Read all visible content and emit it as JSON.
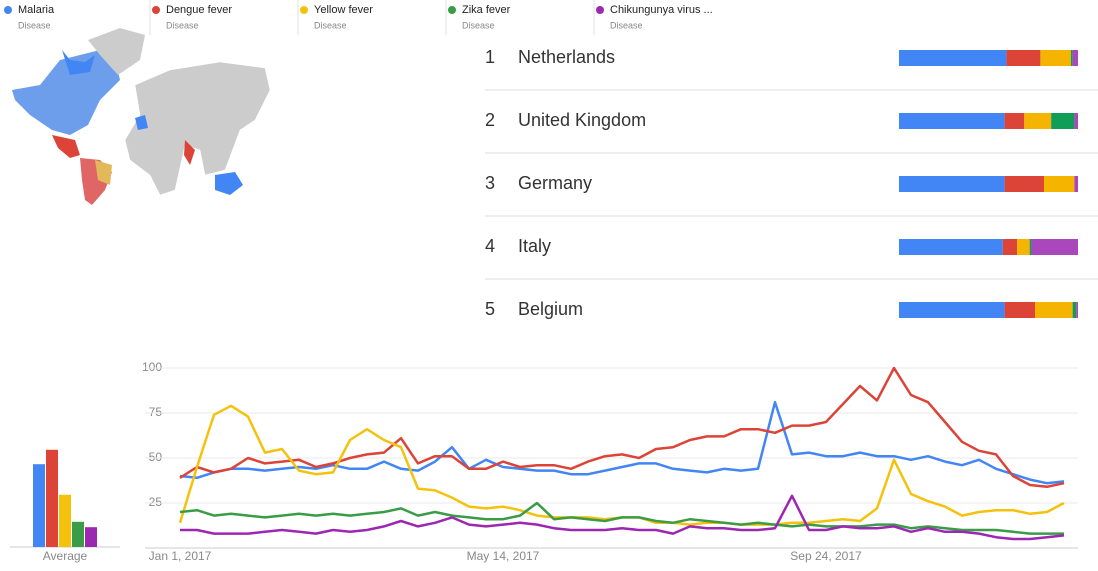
{
  "chart_data": [
    {
      "type": "line",
      "categories": [
        "Jan 1, 2017",
        null,
        null,
        null,
        null,
        null,
        null,
        null,
        null,
        null,
        null,
        null,
        null,
        null,
        null,
        null,
        null,
        null,
        null,
        "May 14, 2017",
        null,
        null,
        null,
        null,
        null,
        null,
        null,
        null,
        null,
        null,
        null,
        null,
        null,
        null,
        null,
        null,
        null,
        null,
        "Sep 24, 2017",
        null,
        null,
        null,
        null,
        null,
        null,
        null,
        null,
        null,
        null,
        null,
        null,
        null,
        null
      ],
      "ylim": [
        0,
        100
      ],
      "yticks": [
        25,
        50,
        75,
        100
      ],
      "grid": true,
      "series": [
        {
          "name": "Malaria",
          "kind": "Disease",
          "color": "#4285f4",
          "values": [
            40,
            39,
            42,
            44,
            44,
            43,
            44,
            45,
            44,
            46,
            44,
            44,
            48,
            44,
            43,
            48,
            56,
            44,
            49,
            45,
            44,
            43,
            43,
            41,
            41,
            43,
            45,
            47,
            47,
            44,
            43,
            42,
            44,
            43,
            44,
            81,
            52,
            53,
            51,
            51,
            53,
            51,
            51,
            49,
            51,
            48,
            46,
            49,
            44,
            41,
            38,
            36,
            37
          ]
        },
        {
          "name": "Dengue fever",
          "kind": "Disease",
          "color": "#db4437",
          "values": [
            39,
            45,
            42,
            44,
            50,
            47,
            48,
            49,
            45,
            47,
            50,
            52,
            53,
            61,
            47,
            51,
            51,
            44,
            44,
            48,
            45,
            46,
            46,
            44,
            48,
            51,
            52,
            50,
            55,
            56,
            60,
            62,
            62,
            66,
            66,
            64,
            68,
            68,
            70,
            80,
            90,
            82,
            100,
            85,
            81,
            70,
            59,
            54,
            52,
            40,
            35,
            34,
            36
          ]
        },
        {
          "name": "Yellow fever",
          "kind": "Disease",
          "color": "#f4c20d",
          "values": [
            14,
            45,
            74,
            79,
            73,
            53,
            55,
            43,
            41,
            42,
            60,
            66,
            60,
            56,
            33,
            32,
            28,
            23,
            22,
            23,
            21,
            18,
            17,
            17,
            17,
            16,
            17,
            17,
            14,
            14,
            13,
            14,
            14,
            13,
            13,
            13,
            14,
            14,
            15,
            16,
            15,
            22,
            49,
            30,
            26,
            23,
            18,
            20,
            21,
            21,
            19,
            20,
            25
          ]
        },
        {
          "name": "Zika fever",
          "kind": "Disease",
          "color": "#3b9c48",
          "values": [
            20,
            21,
            18,
            19,
            18,
            17,
            18,
            19,
            18,
            19,
            18,
            19,
            20,
            22,
            18,
            20,
            18,
            17,
            16,
            16,
            18,
            25,
            16,
            17,
            16,
            15,
            17,
            17,
            15,
            14,
            16,
            15,
            14,
            13,
            14,
            13,
            12,
            13,
            12,
            12,
            12,
            13,
            13,
            11,
            12,
            11,
            10,
            10,
            10,
            9,
            8,
            8,
            8
          ]
        },
        {
          "name": "Chikungunya virus ...",
          "kind": "Disease",
          "color": "#9c27b0",
          "values": [
            10,
            10,
            8,
            8,
            8,
            9,
            10,
            9,
            8,
            10,
            9,
            10,
            12,
            15,
            12,
            14,
            17,
            13,
            12,
            13,
            14,
            13,
            11,
            10,
            10,
            10,
            11,
            10,
            10,
            8,
            12,
            11,
            11,
            10,
            10,
            11,
            29,
            10,
            10,
            12,
            11,
            11,
            12,
            9,
            11,
            9,
            9,
            8,
            6,
            5,
            5,
            6,
            7
          ]
        }
      ]
    },
    {
      "type": "bar",
      "x_label": "Average",
      "ylim": [
        0,
        100
      ],
      "values": [
        46,
        54,
        29,
        14,
        11
      ],
      "colors": [
        "#4285f4",
        "#db4437",
        "#f4c20d",
        "#3b9c48",
        "#9c27b0"
      ]
    },
    {
      "type": "stacked-bar",
      "ranks": [
        1,
        2,
        3,
        4,
        5
      ],
      "categories": [
        "Netherlands",
        "United Kingdom",
        "Germany",
        "Italy",
        "Belgium"
      ],
      "xlim": [
        0,
        100
      ],
      "series": [
        {
          "color": "#4285f4",
          "values": [
            60,
            59,
            59,
            58,
            59
          ]
        },
        {
          "color": "#db4437",
          "values": [
            19,
            11,
            22,
            8,
            17
          ]
        },
        {
          "color": "#f4b400",
          "values": [
            17,
            15,
            17,
            7,
            21
          ]
        },
        {
          "color": "#0f9d58",
          "values": [
            1,
            13,
            0,
            1,
            2
          ]
        },
        {
          "color": "#ab47bc",
          "values": [
            3,
            2,
            2,
            26,
            1
          ]
        }
      ]
    }
  ]
}
